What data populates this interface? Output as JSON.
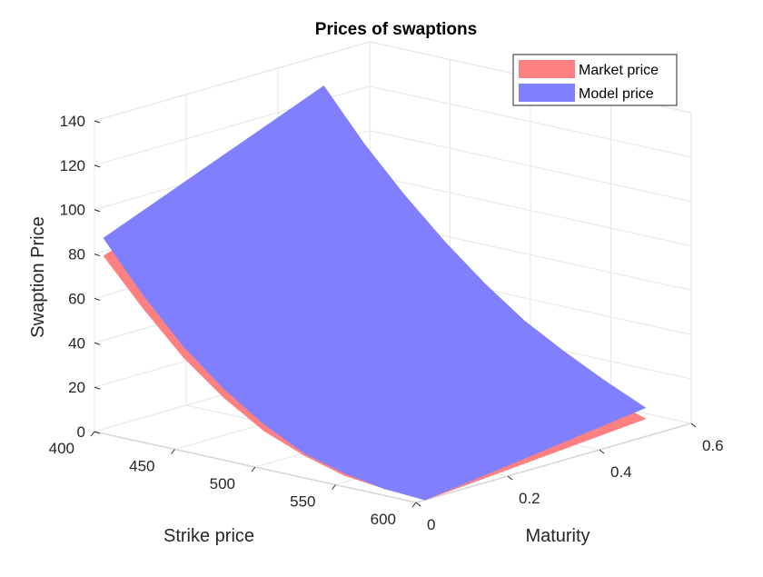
{
  "chart_data": {
    "type": "surface",
    "title": "Prices of swaptions",
    "xlabel": "Strike price",
    "ylabel": "Maturity",
    "zlabel": "Swaption Price",
    "xlim": [
      400,
      600
    ],
    "ylim": [
      0,
      0.6
    ],
    "zlim": [
      0,
      140
    ],
    "x_ticks": [
      "400",
      "450",
      "500",
      "550",
      "600"
    ],
    "y_ticks": [
      "0",
      "0.2",
      "0.4",
      "0.6"
    ],
    "z_ticks": [
      "0",
      "20",
      "40",
      "60",
      "80",
      "100",
      "120",
      "140"
    ],
    "grid": true,
    "legend_position": "top-right",
    "series": [
      {
        "name": "Market price",
        "color": "#ff8080",
        "strikes": [
          400,
          425,
          450,
          475,
          500,
          525,
          550,
          575,
          600
        ],
        "maturities": [
          0.02,
          0.5
        ],
        "values": [
          [
            78,
            110
          ],
          [
            58,
            92
          ],
          [
            40,
            76
          ],
          [
            26,
            60
          ],
          [
            15,
            46
          ],
          [
            8,
            34
          ],
          [
            3,
            23
          ],
          [
            1,
            14
          ],
          [
            0,
            8
          ]
        ]
      },
      {
        "name": "Model price",
        "color": "#8080ff",
        "strikes": [
          400,
          425,
          450,
          475,
          500,
          525,
          550,
          575,
          600
        ],
        "maturities": [
          0.02,
          0.5
        ],
        "values": [
          [
            86,
            126
          ],
          [
            64,
            104
          ],
          [
            45,
            85
          ],
          [
            30,
            68
          ],
          [
            18,
            53
          ],
          [
            9,
            40
          ],
          [
            4,
            30
          ],
          [
            1,
            21
          ],
          [
            0,
            13
          ]
        ]
      }
    ]
  }
}
